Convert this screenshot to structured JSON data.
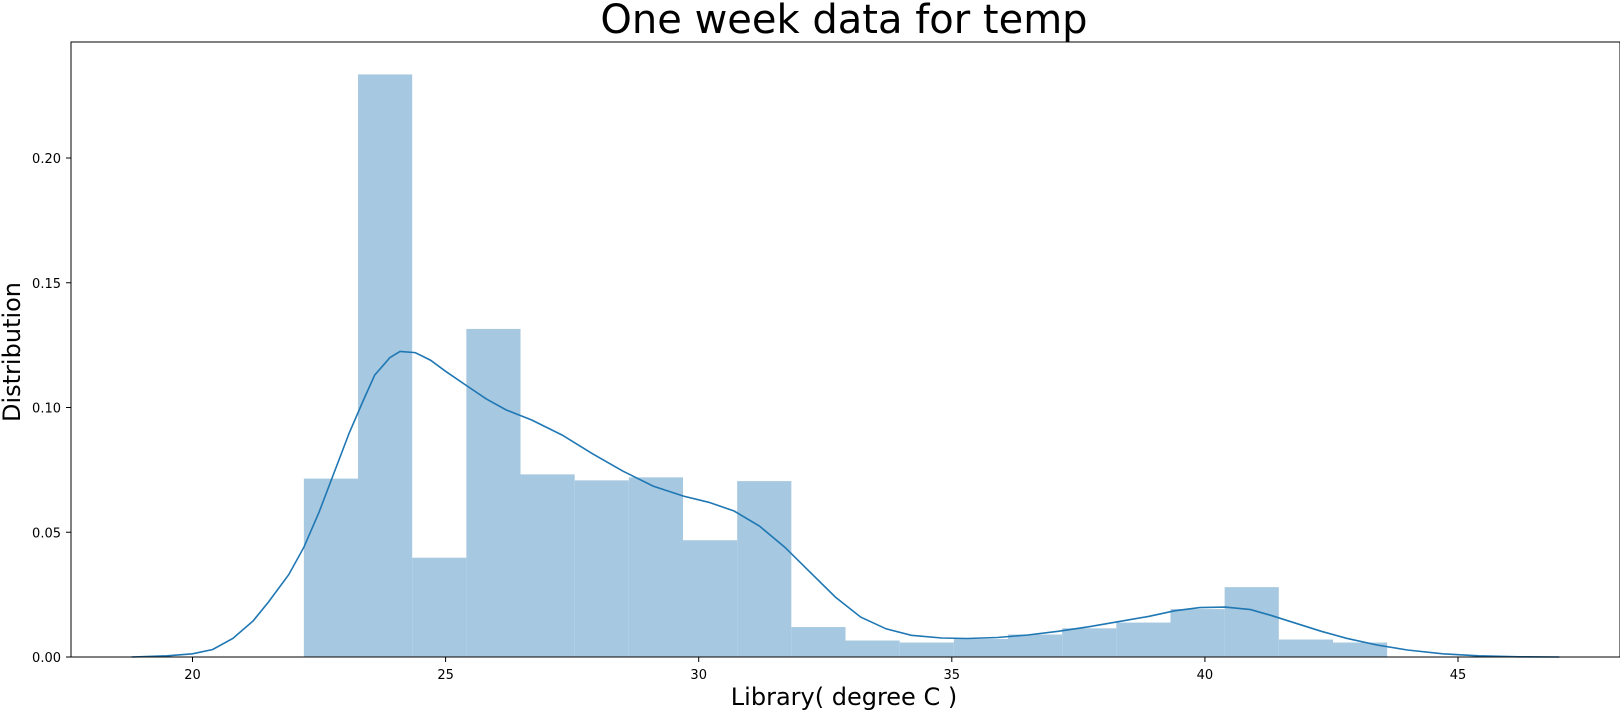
{
  "chart_data": {
    "type": "bar",
    "title": "One week data for temp",
    "xlabel": "Library( degree C )",
    "ylabel": "Distribution",
    "xlim": [
      17.6,
      48.2
    ],
    "ylim": [
      0,
      0.2465
    ],
    "xticks": [
      20,
      25,
      30,
      35,
      40,
      45
    ],
    "yticks": [
      0.0,
      0.05,
      0.1,
      0.15,
      0.2
    ],
    "ytick_labels": [
      "0.00",
      "0.05",
      "0.10",
      "0.15",
      "0.20"
    ],
    "grid": false,
    "histogram": {
      "color": "#a6c8e0",
      "bins": [
        {
          "x0": 22.2,
          "x1": 23.27,
          "value": 0.0715
        },
        {
          "x0": 23.27,
          "x1": 24.34,
          "value": 0.2335
        },
        {
          "x0": 24.34,
          "x1": 25.41,
          "value": 0.0398
        },
        {
          "x0": 25.41,
          "x1": 26.48,
          "value": 0.1315
        },
        {
          "x0": 26.48,
          "x1": 27.55,
          "value": 0.0732
        },
        {
          "x0": 27.55,
          "x1": 28.62,
          "value": 0.0708
        },
        {
          "x0": 28.62,
          "x1": 29.69,
          "value": 0.072
        },
        {
          "x0": 29.69,
          "x1": 30.76,
          "value": 0.0468
        },
        {
          "x0": 30.76,
          "x1": 31.83,
          "value": 0.0705
        },
        {
          "x0": 31.83,
          "x1": 32.9,
          "value": 0.012
        },
        {
          "x0": 32.9,
          "x1": 33.97,
          "value": 0.0066
        },
        {
          "x0": 33.97,
          "x1": 35.04,
          "value": 0.0058
        },
        {
          "x0": 35.04,
          "x1": 36.11,
          "value": 0.0072
        },
        {
          "x0": 36.11,
          "x1": 37.18,
          "value": 0.009
        },
        {
          "x0": 37.18,
          "x1": 38.25,
          "value": 0.0115
        },
        {
          "x0": 38.25,
          "x1": 39.32,
          "value": 0.0138
        },
        {
          "x0": 39.32,
          "x1": 40.39,
          "value": 0.0192
        },
        {
          "x0": 40.39,
          "x1": 41.46,
          "value": 0.028
        },
        {
          "x0": 41.46,
          "x1": 42.53,
          "value": 0.007
        },
        {
          "x0": 42.53,
          "x1": 43.6,
          "value": 0.0058
        }
      ]
    },
    "kde": {
      "color": "#1f77b4",
      "points": [
        [
          18.8,
          0.0
        ],
        [
          19.5,
          0.0005
        ],
        [
          20.0,
          0.0013
        ],
        [
          20.4,
          0.003
        ],
        [
          20.8,
          0.0075
        ],
        [
          21.2,
          0.0145
        ],
        [
          21.5,
          0.022
        ],
        [
          21.9,
          0.033
        ],
        [
          22.2,
          0.044
        ],
        [
          22.5,
          0.058
        ],
        [
          22.8,
          0.074
        ],
        [
          23.1,
          0.09
        ],
        [
          23.4,
          0.104
        ],
        [
          23.6,
          0.113
        ],
        [
          23.9,
          0.12
        ],
        [
          24.1,
          0.1225
        ],
        [
          24.4,
          0.122
        ],
        [
          24.7,
          0.119
        ],
        [
          25.0,
          0.1145
        ],
        [
          25.4,
          0.109
        ],
        [
          25.8,
          0.1035
        ],
        [
          26.2,
          0.099
        ],
        [
          26.7,
          0.095
        ],
        [
          27.3,
          0.089
        ],
        [
          27.9,
          0.0815
        ],
        [
          28.5,
          0.0745
        ],
        [
          29.1,
          0.0685
        ],
        [
          29.7,
          0.0645
        ],
        [
          30.2,
          0.062
        ],
        [
          30.7,
          0.0585
        ],
        [
          31.2,
          0.0525
        ],
        [
          31.7,
          0.044
        ],
        [
          32.2,
          0.034
        ],
        [
          32.7,
          0.024
        ],
        [
          33.2,
          0.016
        ],
        [
          33.7,
          0.0113
        ],
        [
          34.2,
          0.0087
        ],
        [
          34.8,
          0.0076
        ],
        [
          35.3,
          0.0074
        ],
        [
          35.9,
          0.0078
        ],
        [
          36.5,
          0.0088
        ],
        [
          37.1,
          0.0103
        ],
        [
          37.7,
          0.0121
        ],
        [
          38.3,
          0.0142
        ],
        [
          38.9,
          0.0163
        ],
        [
          39.4,
          0.0185
        ],
        [
          39.9,
          0.0198
        ],
        [
          40.4,
          0.02
        ],
        [
          40.9,
          0.019
        ],
        [
          41.3,
          0.0167
        ],
        [
          41.8,
          0.0135
        ],
        [
          42.3,
          0.0103
        ],
        [
          42.8,
          0.0075
        ],
        [
          43.4,
          0.0048
        ],
        [
          44.0,
          0.0028
        ],
        [
          44.7,
          0.0013
        ],
        [
          45.4,
          0.0005
        ],
        [
          46.2,
          0.0001
        ],
        [
          47.0,
          0.0
        ]
      ]
    }
  }
}
